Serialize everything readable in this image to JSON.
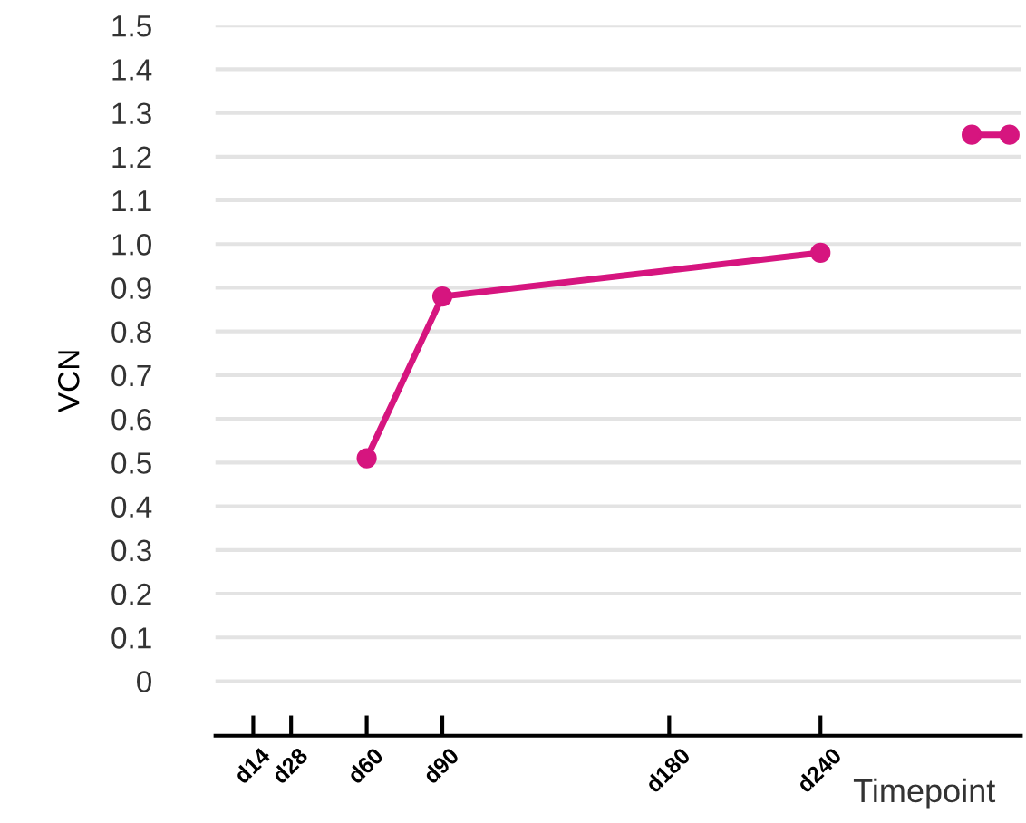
{
  "chart_data": {
    "type": "line",
    "xlabel": "Timepoint",
    "ylabel": "VCN",
    "categories": [
      null,
      "d14",
      "d28",
      null,
      "d60",
      null,
      "d90",
      null,
      null,
      null,
      null,
      null,
      "d180",
      null,
      null,
      null,
      "d240",
      null,
      null,
      null,
      null,
      null
    ],
    "ylim": [
      -0.125,
      1.5
    ],
    "yticks": [
      {
        "value": 0,
        "label": "0"
      },
      0.1,
      0.2,
      0.3,
      0.4,
      0.5,
      0.6,
      0.7,
      0.8,
      0.9,
      {
        "value": 1.0,
        "label": "1.0"
      },
      1.1,
      1.2,
      1.3,
      1.4,
      1.5
    ],
    "grid": "y",
    "marker": "circle",
    "line_style": "solid",
    "series": [
      {
        "color": "#d6157f",
        "values": [
          null,
          null,
          null,
          null,
          0.51,
          null,
          0.88,
          null,
          null,
          null,
          null,
          null,
          null,
          null,
          null,
          null,
          0.98,
          null,
          null,
          null,
          null,
          null
        ]
      },
      {
        "color": "#d6157f",
        "values": [
          null,
          null,
          null,
          null,
          null,
          null,
          null,
          null,
          null,
          null,
          null,
          null,
          null,
          null,
          null,
          null,
          null,
          null,
          null,
          null,
          1.25,
          1.25
        ]
      }
    ]
  }
}
